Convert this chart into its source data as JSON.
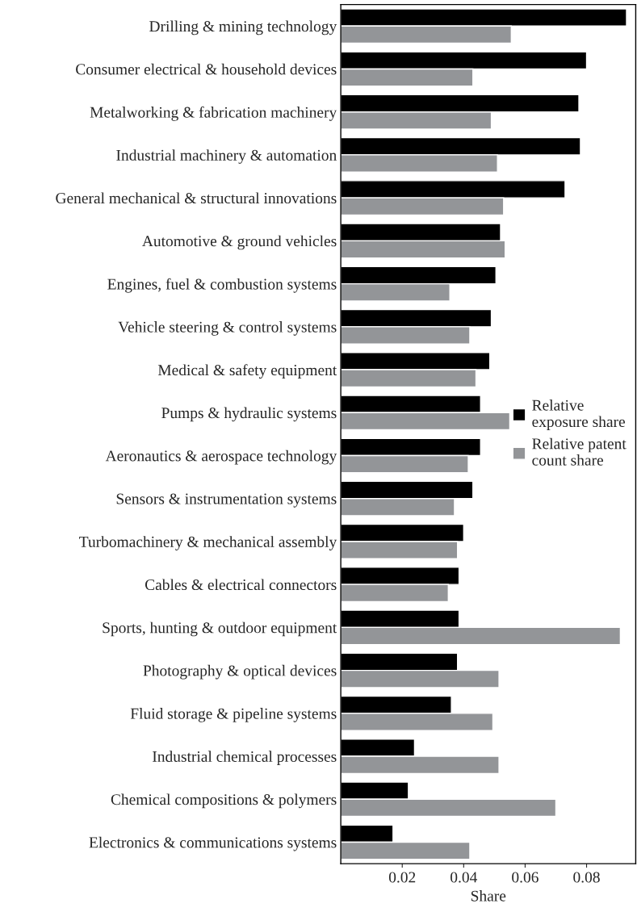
{
  "chart_data": {
    "type": "bar",
    "orientation": "horizontal",
    "xlabel": "Share",
    "categories": [
      "Drilling & mining technology",
      "Consumer electrical & household devices",
      "Metalworking & fabrication machinery",
      "Industrial machinery & automation",
      "General mechanical & structural innovations",
      "Automotive & ground vehicles",
      "Engines, fuel & combustion systems",
      "Vehicle steering & control systems",
      "Medical & safety equipment",
      "Pumps & hydraulic systems",
      "Aeronautics & aerospace technology",
      "Sensors & instrumentation systems",
      "Turbomachinery & mechanical assembly",
      "Cables & electrical connectors",
      "Sports, hunting & outdoor equipment",
      "Photography & optical devices",
      "Fluid storage & pipeline systems",
      "Industrial chemical processes",
      "Chemical compositions & polymers",
      "Electronics & communications systems"
    ],
    "series": [
      {
        "name": "Relative\nexposure share",
        "color": "#000000",
        "values": [
          0.093,
          0.08,
          0.0775,
          0.078,
          0.073,
          0.052,
          0.0505,
          0.049,
          0.0485,
          0.0455,
          0.0455,
          0.043,
          0.04,
          0.0385,
          0.0385,
          0.038,
          0.036,
          0.024,
          0.022,
          0.017
        ]
      },
      {
        "name": "Relative patent\ncount share",
        "color": "#939598",
        "values": [
          0.0555,
          0.043,
          0.049,
          0.051,
          0.053,
          0.0535,
          0.0355,
          0.042,
          0.044,
          0.055,
          0.0415,
          0.037,
          0.038,
          0.035,
          0.091,
          0.0515,
          0.0495,
          0.0515,
          0.07,
          0.042
        ]
      }
    ],
    "xlim": [
      0,
      0.096
    ],
    "xticks": [
      0.02,
      0.04,
      0.06,
      0.08
    ],
    "grid": false,
    "legend": "right"
  }
}
